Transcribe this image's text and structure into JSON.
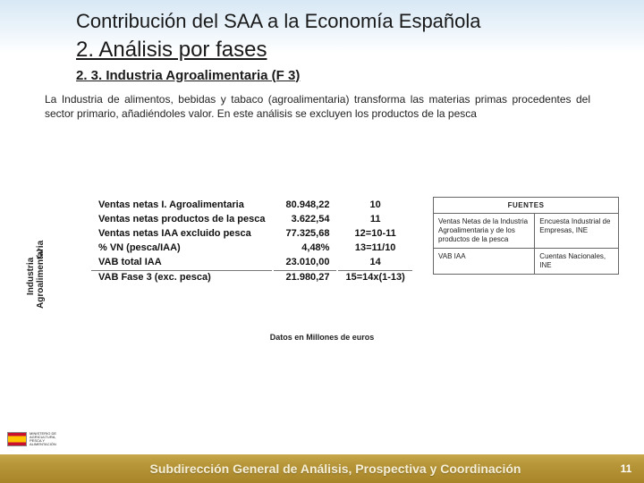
{
  "header": {
    "title_line": "Contribución del SAA a la Economía Española",
    "section_title": "2. Análisis por fases",
    "subsection": "2. 3. Industria Agroalimentaria (F 3)"
  },
  "paragraph": "La Industria de alimentos, bebidas y tabaco (agroalimentaria) transforma las materias primas procedentes del sector primario, añadiéndoles valor. En este análisis se excluyen los productos de la pesca",
  "vertical_label_1": "Industria",
  "vertical_label_2": "Agroalimentaria",
  "phase_number": "3",
  "data_rows": [
    {
      "label": "Ventas netas I. Agroalimentaria",
      "value": "80.948,22",
      "col": "10"
    },
    {
      "label": "Ventas netas productos de la pesca",
      "value": "3.622,54",
      "col": "11"
    },
    {
      "label": "Ventas netas IAA excluido pesca",
      "value": "77.325,68",
      "col": "12=10-11"
    },
    {
      "label": "% VN (pesca/IAA)",
      "value": "4,48%",
      "col": "13=11/10"
    },
    {
      "label": "VAB total IAA",
      "value": "23.010,00",
      "col": "14"
    }
  ],
  "data_total": {
    "label": "VAB Fase 3 (exc. pesca)",
    "value": "21.980,27",
    "col": "15=14x(1-13)"
  },
  "sources": {
    "header": "FUENTES",
    "rows": [
      {
        "left": "Ventas Netas de la Industria Agroalimentaria y de los productos de la pesca",
        "right": "Encuesta Industrial de Empresas, INE"
      },
      {
        "left": "VAB IAA",
        "right": "Cuentas Nacionales, INE"
      }
    ]
  },
  "caption": "Datos en Millones de euros",
  "footer": {
    "org": "Subdirección General de Análisis, Prospectiva y Coordinación",
    "page": "11"
  },
  "ministry_text": "MINISTERIO DE AGRICULTURA, PESCA Y ALIMENTACIÓN"
}
